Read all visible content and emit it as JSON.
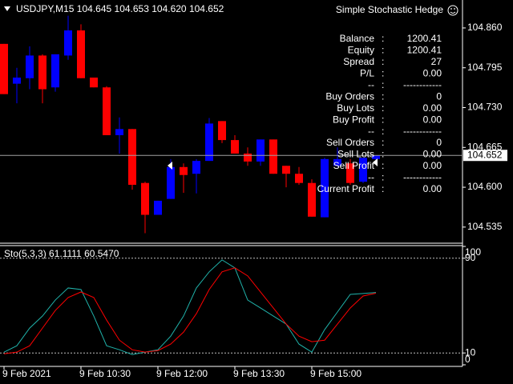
{
  "chart_data": [
    {
      "type": "candlestick",
      "title": "USDJPY,M15  104.645 104.653 104.620 104.652",
      "categories": [
        "9 Feb 2021",
        null,
        null,
        null,
        null,
        null,
        "9 Feb 10:30",
        null,
        null,
        null,
        null,
        null,
        "9 Feb 12:00",
        null,
        null,
        null,
        null,
        null,
        "9 Feb 13:30",
        null,
        null,
        null,
        null,
        null,
        "9 Feb 15:00",
        null,
        null,
        null,
        null,
        null
      ],
      "open": [
        104.834,
        104.769,
        104.778,
        104.815,
        104.763,
        104.815,
        104.856,
        104.779,
        104.763,
        104.685,
        104.695,
        104.607,
        104.555,
        104.581,
        104.633,
        104.622,
        104.643,
        104.708,
        104.677,
        104.655,
        104.642,
        104.678,
        104.635,
        104.622,
        104.607,
        104.551,
        104.635,
        104.639,
        104.609,
        104.646
      ],
      "high": [
        104.834,
        104.795,
        104.83,
        104.817,
        104.817,
        104.88,
        104.866,
        104.779,
        104.765,
        104.714,
        104.695,
        104.609,
        104.578,
        104.646,
        104.639,
        104.646,
        104.713,
        104.708,
        104.685,
        104.665,
        104.678,
        104.678,
        104.635,
        104.633,
        104.613,
        104.648,
        104.665,
        104.646,
        104.648,
        104.652
      ],
      "low": [
        104.752,
        104.737,
        104.76,
        104.737,
        104.756,
        104.808,
        104.778,
        104.763,
        104.685,
        104.655,
        104.596,
        104.525,
        104.555,
        104.581,
        104.591,
        104.59,
        104.643,
        104.672,
        104.655,
        104.635,
        104.635,
        104.622,
        104.6,
        104.604,
        104.552,
        104.551,
        104.633,
        104.604,
        104.607,
        104.643
      ],
      "close": [
        104.752,
        104.779,
        104.815,
        104.76,
        104.817,
        104.856,
        104.778,
        104.763,
        104.685,
        104.695,
        104.604,
        104.555,
        104.578,
        104.633,
        104.62,
        104.643,
        104.704,
        104.677,
        104.655,
        104.642,
        104.678,
        104.622,
        104.622,
        104.607,
        104.552,
        104.646,
        104.646,
        104.607,
        104.648,
        104.652
      ],
      "up_color": "#0000ff",
      "down_color": "#ff0000",
      "current_price": 104.652,
      "ylim": [
        104.51,
        104.903
      ],
      "yticks": [
        {
          "value": 104.535,
          "label": "104.535"
        },
        {
          "value": 104.6,
          "label": "104.600"
        },
        {
          "value": 104.665,
          "label": "104.665"
        },
        {
          "value": 104.73,
          "label": "104.730"
        },
        {
          "value": 104.795,
          "label": "104.795"
        },
        {
          "value": 104.86,
          "label": "104.860"
        }
      ]
    },
    {
      "type": "line",
      "title": "Sto(5,3,3) 61.1111 60.5470",
      "series": [
        {
          "color": "#20b2aa",
          "values": [
            10.7,
            16.1,
            31.0,
            41.2,
            54.7,
            64.9,
            63.6,
            41.2,
            16.1,
            12.7,
            8.6,
            10.7,
            12.7,
            24.2,
            41.2,
            64.9,
            78.5,
            88.6,
            81.9,
            54.7,
            48.0,
            41.2,
            34.4,
            17.5,
            10.7,
            29.7,
            44.6,
            59.5,
            60.2,
            61.1
          ]
        },
        {
          "color": "#ff0000",
          "values": [
            9.3,
            10.7,
            16.1,
            31.0,
            45.9,
            56.8,
            61.5,
            56.8,
            37.8,
            20.8,
            12.7,
            10.7,
            12.0,
            17.5,
            27.6,
            43.2,
            63.6,
            78.5,
            81.9,
            75.1,
            61.5,
            48.0,
            34.4,
            24.2,
            19.5,
            20.8,
            34.4,
            48.0,
            58.1,
            60.5
          ]
        }
      ],
      "ylim": [
        0,
        100
      ],
      "yticks": [
        0,
        10,
        90,
        100
      ],
      "levels": [
        10,
        90
      ]
    }
  ],
  "ea_name": "Simple Stochastic Hedge",
  "panel": {
    "separator": ":",
    "rows": [
      [
        "Balance",
        "1200.41"
      ],
      [
        "Equity",
        "1200.41"
      ],
      [
        "Spread",
        "27"
      ],
      [
        "P/L",
        "0.00"
      ],
      [
        "--",
        "------------"
      ],
      [
        "Buy Orders",
        "0"
      ],
      [
        "Buy Lots",
        "0.00"
      ],
      [
        "Buy Profit",
        "0.00"
      ],
      [
        "--",
        "------------"
      ],
      [
        "Sell Orders",
        "0"
      ],
      [
        "Sell Lots",
        "0.00"
      ],
      [
        "Sell Profit",
        "0.00"
      ],
      [
        "--",
        "------------"
      ],
      [
        "Current Profit",
        "0.00"
      ]
    ]
  }
}
